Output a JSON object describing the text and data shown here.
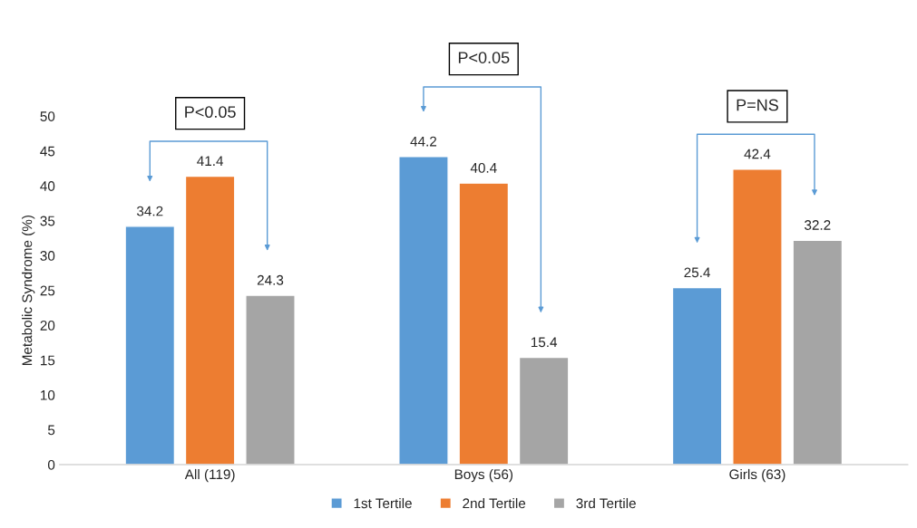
{
  "chart_data": {
    "type": "bar",
    "ylabel": "Metabolic Syndrome (%)",
    "categories": [
      "All (119)",
      "Boys (56)",
      "Girls (63)"
    ],
    "series": [
      {
        "name": "1st Tertile",
        "color": "#5b9bd5",
        "values": [
          34.2,
          44.2,
          25.4
        ]
      },
      {
        "name": "2nd Tertile",
        "color": "#ed7d31",
        "values": [
          41.4,
          40.4,
          42.4
        ]
      },
      {
        "name": "3rd Tertile",
        "color": "#a5a5a5",
        "values": [
          24.3,
          15.4,
          32.2
        ]
      }
    ],
    "ylim": [
      0,
      50
    ],
    "yticks": [
      0,
      5,
      10,
      15,
      20,
      25,
      30,
      35,
      40,
      45,
      50
    ],
    "data_labels": true,
    "grid": false,
    "legend": "bottom",
    "annotations": [
      "P<0.05",
      "P<0.05",
      "P=NS"
    ]
  }
}
